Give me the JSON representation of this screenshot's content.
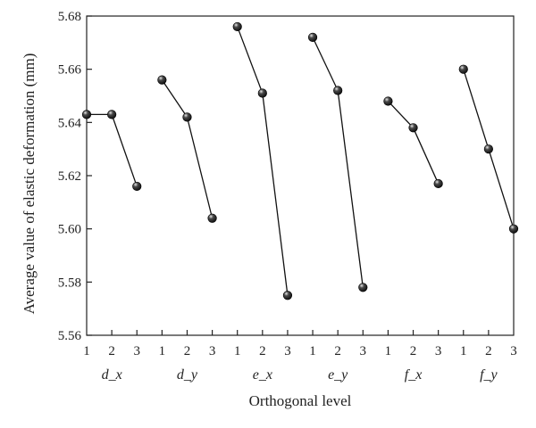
{
  "chart_data": {
    "type": "line",
    "title": "",
    "xlabel": "Orthogonal level",
    "ylabel": "Average value of elastic deformation (mm)",
    "ylim": [
      5.56,
      5.68
    ],
    "yticks": [
      "5.56",
      "5.58",
      "5.60",
      "5.62",
      "5.64",
      "5.66",
      "5.68"
    ],
    "levels": [
      "1",
      "2",
      "3"
    ],
    "grid": false,
    "series": [
      {
        "group_label": "d_x",
        "values": [
          5.643,
          5.643,
          5.616
        ]
      },
      {
        "group_label": "d_y",
        "values": [
          5.656,
          5.642,
          5.604
        ]
      },
      {
        "group_label": "e_x",
        "values": [
          5.676,
          5.651,
          5.575
        ]
      },
      {
        "group_label": "e_y",
        "values": [
          5.672,
          5.652,
          5.578
        ]
      },
      {
        "group_label": "f_x",
        "values": [
          5.648,
          5.638,
          5.617
        ]
      },
      {
        "group_label": "f_y",
        "values": [
          5.66,
          5.63,
          5.6
        ]
      }
    ]
  }
}
